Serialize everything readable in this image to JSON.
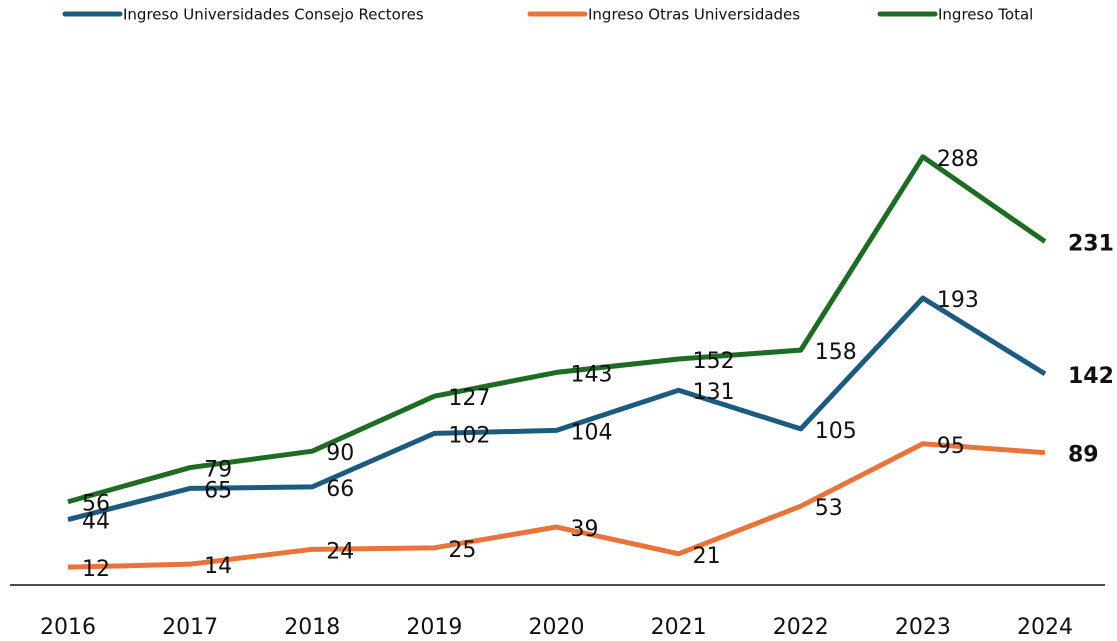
{
  "chart_data": {
    "type": "line",
    "categories": [
      "2016",
      "2017",
      "2018",
      "2019",
      "2020",
      "2021",
      "2022",
      "2023",
      "2024"
    ],
    "series": [
      {
        "name": "Ingreso Universidades Consejo Rectores",
        "color": "#1d5b7e",
        "values": [
          44,
          65,
          66,
          102,
          104,
          131,
          105,
          193,
          142
        ]
      },
      {
        "name": "Ingreso Otras Universidades",
        "color": "#e8743b",
        "values": [
          12,
          14,
          24,
          25,
          39,
          21,
          53,
          95,
          89
        ]
      },
      {
        "name": "Ingreso Total",
        "color": "#1e6b23",
        "values": [
          56,
          79,
          90,
          127,
          143,
          152,
          158,
          288,
          231
        ]
      }
    ],
    "ylim": [
      0,
      300
    ],
    "legend": "top"
  }
}
